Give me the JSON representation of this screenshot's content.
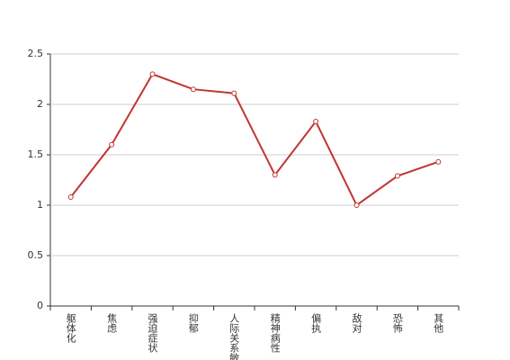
{
  "chart_data": {
    "type": "line",
    "categories": [
      "躯体化",
      "焦虑",
      "强迫症状",
      "抑郁",
      "人际关系敏感",
      "精神病性",
      "偏执",
      "敌对",
      "恐怖",
      "其他"
    ],
    "series": [
      {
        "color": "#c23531",
        "values": [
          1.08,
          1.6,
          2.3,
          2.15,
          2.11,
          1.3,
          1.83,
          1.0,
          1.29,
          1.43
        ]
      }
    ],
    "ylim": [
      0,
      2.5
    ],
    "yticks": [
      0,
      0.5,
      1,
      1.5,
      2,
      2.5
    ],
    "grid": true
  }
}
